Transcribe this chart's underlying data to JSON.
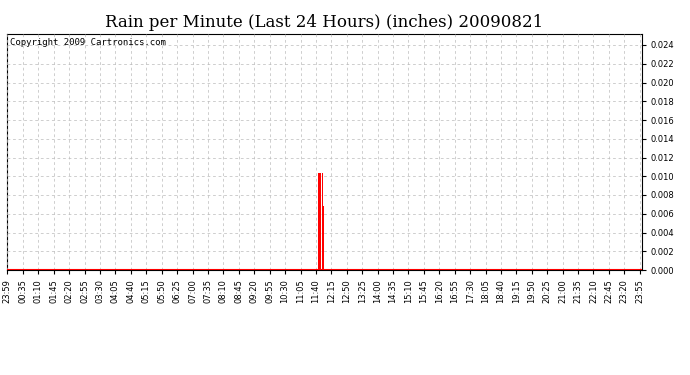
{
  "title": "Rain per Minute (Last 24 Hours) (inches) 20090821",
  "copyright": "Copyright 2009 Cartronics.com",
  "ylim": [
    0,
    0.0252
  ],
  "yticks": [
    0.0,
    0.002,
    0.004,
    0.006,
    0.008,
    0.01,
    0.012,
    0.014,
    0.016,
    0.018,
    0.02,
    0.022,
    0.024
  ],
  "background_color": "#ffffff",
  "plot_bg_color": "#ffffff",
  "bar_color": "#ff0000",
  "baseline_color": "#ff0000",
  "grid_color": "#bbbbbb",
  "num_minutes": 1441,
  "rain_spikes": [
    {
      "minute": 706,
      "value": 0.0104
    },
    {
      "minute": 710,
      "value": 0.0104
    },
    {
      "minute": 711,
      "value": 0.0104
    },
    {
      "minute": 716,
      "value": 0.0104
    },
    {
      "minute": 717,
      "value": 0.0068
    }
  ],
  "xtick_labels": [
    "23:59",
    "00:35",
    "01:10",
    "01:45",
    "02:20",
    "02:55",
    "03:30",
    "04:05",
    "04:40",
    "05:15",
    "05:50",
    "06:25",
    "07:00",
    "07:35",
    "08:10",
    "08:45",
    "09:20",
    "09:55",
    "10:30",
    "11:05",
    "11:40",
    "12:15",
    "12:50",
    "13:25",
    "14:00",
    "14:35",
    "15:10",
    "15:45",
    "16:20",
    "16:55",
    "17:30",
    "18:05",
    "18:40",
    "19:15",
    "19:50",
    "20:25",
    "21:00",
    "21:35",
    "22:10",
    "22:45",
    "23:20",
    "23:55"
  ],
  "xtick_positions_minutes": [
    0,
    36,
    71,
    106,
    141,
    176,
    211,
    246,
    281,
    316,
    351,
    386,
    421,
    456,
    491,
    526,
    561,
    596,
    631,
    666,
    701,
    736,
    771,
    806,
    841,
    876,
    911,
    946,
    981,
    1016,
    1051,
    1086,
    1121,
    1156,
    1191,
    1226,
    1261,
    1296,
    1331,
    1366,
    1401,
    1436
  ],
  "title_fontsize": 12,
  "tick_fontsize": 6,
  "copyright_fontsize": 6.5,
  "figwidth": 6.9,
  "figheight": 3.75,
  "dpi": 100
}
